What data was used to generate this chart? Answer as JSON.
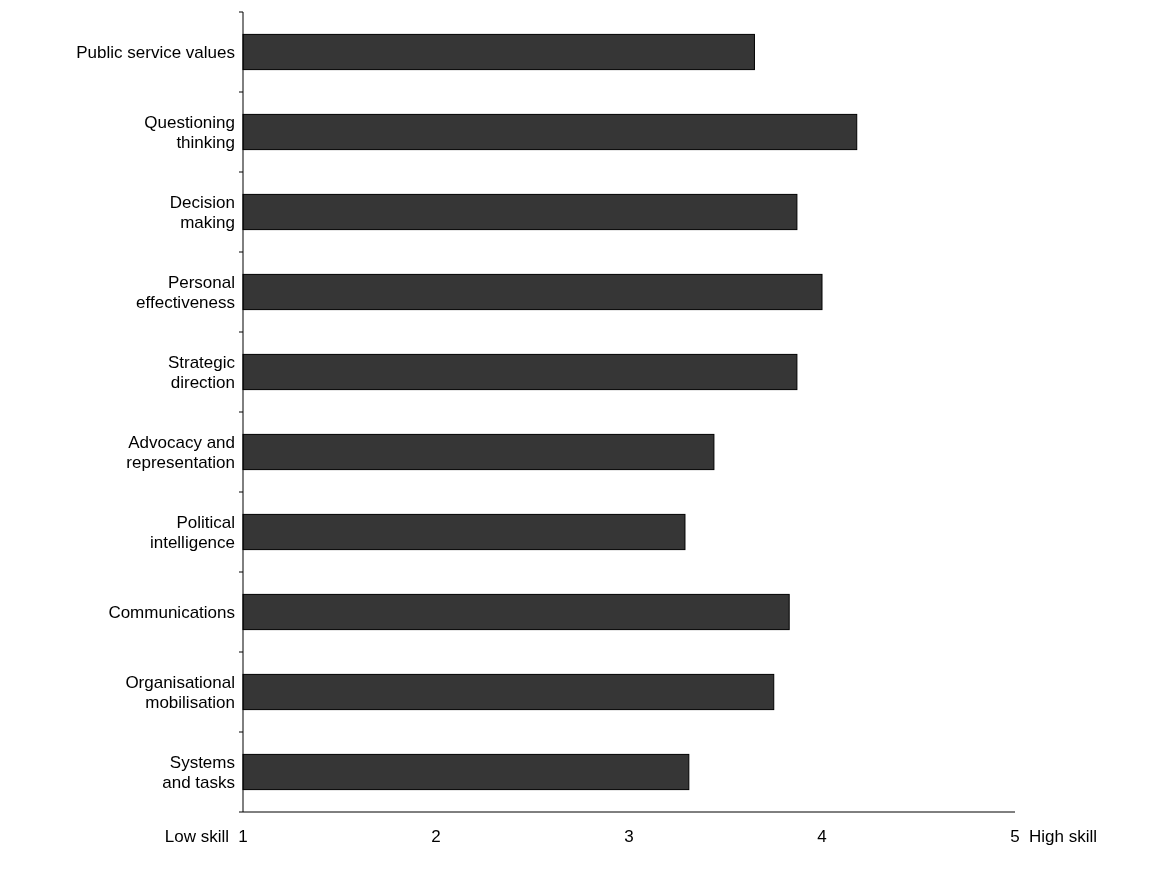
{
  "chart_data": {
    "type": "bar",
    "orientation": "horizontal",
    "categories": [
      "Public service values",
      "Questioning\nthinking",
      "Decision\nmaking",
      "Personal\neffectiveness",
      "Strategic\ndirection",
      "Advocacy and\nrepresentation",
      "Political\nintelligence",
      "Communications",
      "Organisational\nmobilisation",
      "Systems\nand tasks"
    ],
    "values": [
      3.65,
      4.18,
      3.87,
      4.0,
      3.87,
      3.44,
      3.29,
      3.83,
      3.75,
      3.31
    ],
    "color": "#363636",
    "xlim": [
      1,
      5
    ],
    "xticks": [
      1,
      2,
      3,
      4,
      5
    ],
    "annotations": [
      "Low skill",
      "High skill"
    ],
    "grid": false
  }
}
